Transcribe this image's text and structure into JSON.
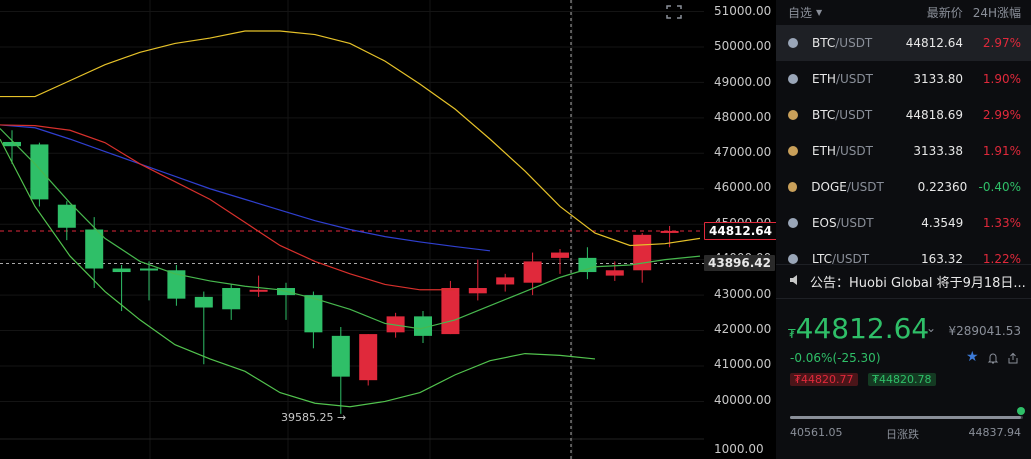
{
  "axis": {
    "ticks": [
      "51000.00",
      "50000.00",
      "49000.00",
      "48000.00",
      "47000.00",
      "46000.00",
      "45000.00",
      "44000.00",
      "43000.00",
      "42000.00",
      "41000.00",
      "40000.00",
      "1000.00"
    ],
    "current_price_tag": "44812.64",
    "crosshair_price_tag": "43896.42"
  },
  "chart_data": {
    "type": "candlestick",
    "y_ticks": [
      51000,
      50000,
      49000,
      48000,
      47000,
      46000,
      45000,
      44000,
      43000,
      42000,
      41000,
      40000
    ],
    "ylim": [
      39300,
      51300
    ],
    "candles": [
      {
        "o": 47320,
        "h": 47650,
        "l": 46700,
        "c": 47200
      },
      {
        "o": 47250,
        "h": 47300,
        "l": 45500,
        "c": 45700
      },
      {
        "o": 45550,
        "h": 45650,
        "l": 44550,
        "c": 44900
      },
      {
        "o": 44850,
        "h": 45200,
        "l": 43200,
        "c": 43750
      },
      {
        "o": 43750,
        "h": 43850,
        "l": 42550,
        "c": 43650
      },
      {
        "o": 43750,
        "h": 43950,
        "l": 42850,
        "c": 43700
      },
      {
        "o": 43700,
        "h": 43850,
        "l": 42700,
        "c": 42900
      },
      {
        "o": 42950,
        "h": 43100,
        "l": 41050,
        "c": 42650
      },
      {
        "o": 43200,
        "h": 43300,
        "l": 42300,
        "c": 42600
      },
      {
        "o": 43150,
        "h": 43550,
        "l": 42950,
        "c": 43150
      },
      {
        "o": 43200,
        "h": 43350,
        "l": 42300,
        "c": 43000
      },
      {
        "o": 43000,
        "h": 43100,
        "l": 41500,
        "c": 41950
      },
      {
        "o": 41850,
        "h": 42100,
        "l": 39650,
        "c": 40700
      },
      {
        "o": 40600,
        "h": 41900,
        "l": 40450,
        "c": 41900
      },
      {
        "o": 41950,
        "h": 42500,
        "l": 41800,
        "c": 42400
      },
      {
        "o": 42400,
        "h": 42550,
        "l": 41650,
        "c": 41850
      },
      {
        "o": 41900,
        "h": 43400,
        "l": 41900,
        "c": 43200
      },
      {
        "o": 43050,
        "h": 44000,
        "l": 42850,
        "c": 43200
      },
      {
        "o": 43300,
        "h": 43600,
        "l": 43100,
        "c": 43500
      },
      {
        "o": 43350,
        "h": 44200,
        "l": 43000,
        "c": 43950
      },
      {
        "o": 44050,
        "h": 44300,
        "l": 43600,
        "c": 44200
      },
      {
        "o": 44050,
        "h": 44350,
        "l": 43450,
        "c": 43650
      },
      {
        "o": 43550,
        "h": 43950,
        "l": 43400,
        "c": 43700
      },
      {
        "o": 43700,
        "h": 44750,
        "l": 43350,
        "c": 44700
      },
      {
        "o": 44800,
        "h": 44950,
        "l": 44350,
        "c": 44810
      }
    ],
    "lines": [
      {
        "color": "#e6c229",
        "values": [
          48600,
          48600,
          49050,
          49500,
          49850,
          50100,
          50250,
          50450,
          50450,
          50350,
          50100,
          49600,
          48950,
          48250,
          47400,
          46500,
          45500,
          44750,
          44400,
          44450,
          44600
        ]
      },
      {
        "color": "#2f3fcf",
        "values": [
          47800,
          47720,
          47400,
          47050,
          46700,
          46350,
          46000,
          45700,
          45400,
          45100,
          44850,
          44650,
          44500,
          44370,
          44250
        ]
      },
      {
        "color": "#d8302c",
        "values": [
          47800,
          47780,
          47650,
          47300,
          46700,
          46200,
          45700,
          45050,
          44400,
          43950,
          43600,
          43300,
          43150,
          43150
        ]
      },
      {
        "color": "#47b84e",
        "values": [
          47700,
          46700,
          45600,
          44600,
          43950,
          43600,
          43400,
          43250,
          43150,
          42900,
          42600,
          42200,
          42050,
          42300,
          42700,
          43100,
          43500,
          43800,
          43850,
          44000,
          44100
        ]
      },
      {
        "color": "#52c34e",
        "values": [
          47400,
          45500,
          44100,
          43100,
          42300,
          41600,
          41200,
          40850,
          40250,
          39950,
          39850,
          40000,
          40250,
          40750,
          41150,
          41350,
          41300,
          41200
        ]
      }
    ],
    "low_annotation": "39585.25 →"
  },
  "watchlist": {
    "headers": [
      "自选",
      "最新价",
      "24H涨幅"
    ],
    "rows": [
      {
        "symbol": "BTC",
        "quote": "/USDT",
        "price": "44812.64",
        "change": "2.97%",
        "dir": "up",
        "selected": true,
        "icon_color": "#9aa6b8"
      },
      {
        "symbol": "ETH",
        "quote": "/USDT",
        "price": "3133.80",
        "change": "1.90%",
        "dir": "up",
        "selected": false,
        "icon_color": "#9aa6b8"
      },
      {
        "symbol": "BTC",
        "quote": "/USDT",
        "price": "44818.69",
        "change": "2.99%",
        "dir": "up",
        "selected": false,
        "icon_color": "#c9a05a"
      },
      {
        "symbol": "ETH",
        "quote": "/USDT",
        "price": "3133.38",
        "change": "1.91%",
        "dir": "up",
        "selected": false,
        "icon_color": "#c9a05a"
      },
      {
        "symbol": "DOGE",
        "quote": "/USDT",
        "price": "0.22360",
        "change": "-0.40%",
        "dir": "down",
        "selected": false,
        "icon_color": "#c9a05a"
      },
      {
        "symbol": "EOS",
        "quote": "/USDT",
        "price": "4.3549",
        "change": "1.33%",
        "dir": "up",
        "selected": false,
        "icon_color": "#9aa6b8"
      },
      {
        "symbol": "LTC",
        "quote": "/USDT",
        "price": "163.32",
        "change": "1.22%",
        "dir": "up",
        "selected": false,
        "icon_color": "#9aa6b8"
      }
    ]
  },
  "notice": {
    "text": "公告：Huobi Global 将于9月18日..."
  },
  "ticker": {
    "currency_symbol": "₮",
    "price": "44812.64",
    "cny": "¥289041.53",
    "change": "-0.06%(-25.30)",
    "ask": "₮44820.77",
    "bid": "₮44820.78",
    "range_low": "40561.05",
    "range_label": "日涨跌",
    "range_high": "44837.94",
    "range_position": 0.99
  }
}
